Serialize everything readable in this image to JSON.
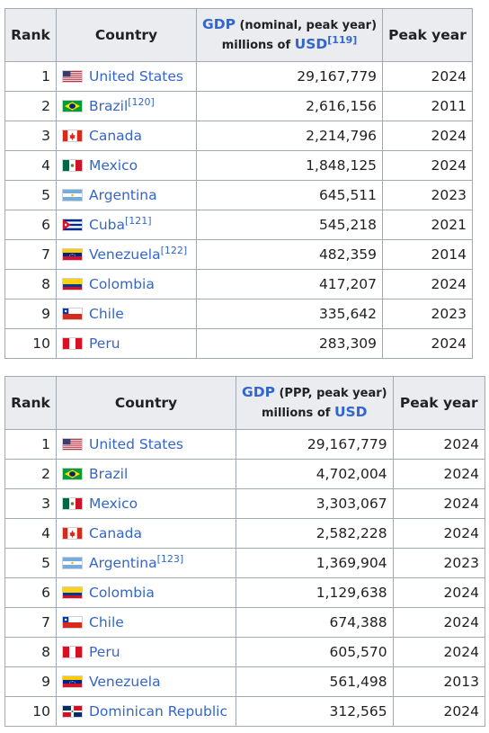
{
  "nominal_table": {
    "headers": {
      "rank": "Rank",
      "country": "Country",
      "gdp_link": "GDP",
      "gdp_rest": " (nominal, peak year)",
      "millions_of": "millions of ",
      "usd_link": "USD",
      "usd_ref": "[119]",
      "peak_year": "Peak year"
    },
    "rows": [
      {
        "rank": "1",
        "flag": "us-flag",
        "country": "United States",
        "ref": "",
        "gdp": "29,167,779",
        "year": "2024"
      },
      {
        "rank": "2",
        "flag": "brazil-flag",
        "country": "Brazil",
        "ref": "[120]",
        "gdp": "2,616,156",
        "year": "2011"
      },
      {
        "rank": "3",
        "flag": "canada-flag",
        "country": "Canada",
        "ref": "",
        "gdp": "2,214,796",
        "year": "2024"
      },
      {
        "rank": "4",
        "flag": "mexico-flag",
        "country": "Mexico",
        "ref": "",
        "gdp": "1,848,125",
        "year": "2024"
      },
      {
        "rank": "5",
        "flag": "argentina-flag",
        "country": "Argentina",
        "ref": "",
        "gdp": "645,511",
        "year": "2023"
      },
      {
        "rank": "6",
        "flag": "cuba-flag",
        "country": "Cuba",
        "ref": "[121]",
        "gdp": "545,218",
        "year": "2021"
      },
      {
        "rank": "7",
        "flag": "venezuela-flag",
        "country": "Venezuela",
        "ref": "[122]",
        "gdp": "482,359",
        "year": "2014"
      },
      {
        "rank": "8",
        "flag": "colombia-flag",
        "country": "Colombia",
        "ref": "",
        "gdp": "417,207",
        "year": "2024"
      },
      {
        "rank": "9",
        "flag": "chile-flag",
        "country": "Chile",
        "ref": "",
        "gdp": "335,642",
        "year": "2023"
      },
      {
        "rank": "10",
        "flag": "peru-flag",
        "country": "Peru",
        "ref": "",
        "gdp": "283,309",
        "year": "2024"
      }
    ]
  },
  "ppp_table": {
    "headers": {
      "rank": "Rank",
      "country": "Country",
      "gdp_link": "GDP",
      "gdp_rest": " (PPP, peak year)",
      "millions_of": "millions of ",
      "usd_link": "USD",
      "peak_year": "Peak year"
    },
    "rows": [
      {
        "rank": "1",
        "flag": "us-flag",
        "country": "United States",
        "ref": "",
        "gdp": "29,167,779",
        "year": "2024"
      },
      {
        "rank": "2",
        "flag": "brazil-flag",
        "country": "Brazil",
        "ref": "",
        "gdp": "4,702,004",
        "year": "2024"
      },
      {
        "rank": "3",
        "flag": "mexico-flag",
        "country": "Mexico",
        "ref": "",
        "gdp": "3,303,067",
        "year": "2024"
      },
      {
        "rank": "4",
        "flag": "canada-flag",
        "country": "Canada",
        "ref": "",
        "gdp": "2,582,228",
        "year": "2024"
      },
      {
        "rank": "5",
        "flag": "argentina-flag",
        "country": "Argentina",
        "ref": "[123]",
        "gdp": "1,369,904",
        "year": "2023"
      },
      {
        "rank": "6",
        "flag": "colombia-flag",
        "country": "Colombia",
        "ref": "",
        "gdp": "1,129,638",
        "year": "2024"
      },
      {
        "rank": "7",
        "flag": "chile-flag",
        "country": "Chile",
        "ref": "",
        "gdp": "674,388",
        "year": "2024"
      },
      {
        "rank": "8",
        "flag": "peru-flag",
        "country": "Peru",
        "ref": "",
        "gdp": "605,570",
        "year": "2024"
      },
      {
        "rank": "9",
        "flag": "venezuela-flag",
        "country": "Venezuela",
        "ref": "",
        "gdp": "561,498",
        "year": "2013"
      },
      {
        "rank": "10",
        "flag": "dominican-republic-flag",
        "country": "Dominican Republic",
        "ref": "",
        "gdp": "312,565",
        "year": "2024"
      }
    ]
  },
  "colors": {
    "link": "#3366cc",
    "header_bg": "#eaecf0",
    "border": "#a2a9b1",
    "text": "#202122"
  }
}
